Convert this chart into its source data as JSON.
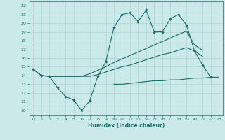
{
  "title": "",
  "xlabel": "Humidex (Indice chaleur)",
  "xlim": [
    -0.5,
    23.5
  ],
  "ylim": [
    9.5,
    22.5
  ],
  "yticks": [
    10,
    11,
    12,
    13,
    14,
    15,
    16,
    17,
    18,
    19,
    20,
    21,
    22
  ],
  "xticks": [
    0,
    1,
    2,
    3,
    4,
    5,
    6,
    7,
    8,
    9,
    10,
    11,
    12,
    13,
    14,
    15,
    16,
    17,
    18,
    19,
    20,
    21,
    22,
    23
  ],
  "bg_color": "#cce9e9",
  "grid_color": "#aad4d4",
  "line_color": "#1a6b6b",
  "line1_x": [
    0,
    1,
    2,
    3,
    4,
    5,
    6,
    7,
    8,
    9,
    10,
    11,
    12,
    13,
    14,
    15,
    16,
    17,
    18,
    19,
    20,
    21,
    22
  ],
  "line1_y": [
    14.7,
    14.0,
    13.9,
    12.6,
    11.6,
    11.2,
    10.0,
    11.1,
    13.9,
    15.6,
    19.5,
    21.0,
    21.2,
    20.2,
    21.5,
    19.0,
    19.0,
    20.5,
    21.0,
    19.8,
    16.8,
    15.2,
    13.8
  ],
  "line2_x": [
    0,
    1,
    2,
    3,
    4,
    5,
    6,
    7,
    8,
    9,
    10,
    11,
    12,
    13,
    14,
    15,
    16,
    17,
    18,
    19,
    20,
    21
  ],
  "line2_y": [
    14.7,
    14.0,
    13.9,
    13.9,
    13.9,
    13.9,
    13.9,
    14.2,
    14.6,
    15.0,
    15.5,
    15.9,
    16.3,
    16.7,
    17.1,
    17.5,
    17.9,
    18.3,
    18.7,
    19.1,
    17.5,
    16.9
  ],
  "line3_x": [
    0,
    1,
    2,
    3,
    4,
    5,
    6,
    7,
    8,
    9,
    10,
    11,
    12,
    13,
    14,
    15,
    16,
    17,
    18,
    19,
    20,
    21
  ],
  "line3_y": [
    14.7,
    14.0,
    13.9,
    13.9,
    13.9,
    13.9,
    13.9,
    13.9,
    14.1,
    14.4,
    14.7,
    15.0,
    15.2,
    15.5,
    15.8,
    16.1,
    16.4,
    16.6,
    16.9,
    17.2,
    16.8,
    16.2
  ],
  "line4_x": [
    10,
    11,
    12,
    13,
    14,
    15,
    16,
    17,
    18,
    19,
    20,
    21,
    22,
    23
  ],
  "line4_y": [
    13.0,
    13.0,
    13.1,
    13.2,
    13.3,
    13.4,
    13.4,
    13.5,
    13.5,
    13.6,
    13.7,
    13.7,
    13.8,
    13.8
  ]
}
